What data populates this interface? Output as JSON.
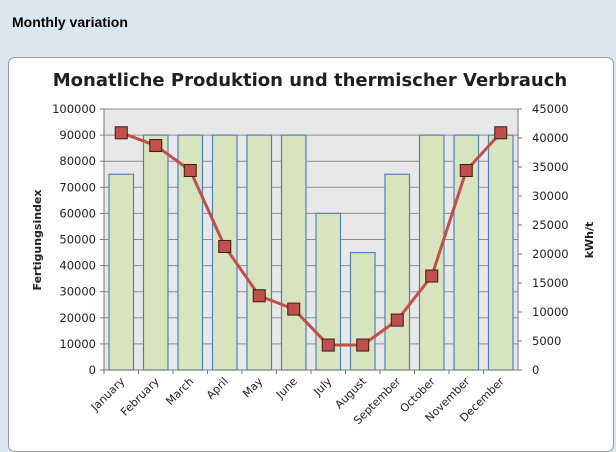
{
  "header": {
    "title": "Monthly variation"
  },
  "chart_data": {
    "type": "bar",
    "title": "Monatliche Produktion und thermischer Verbrauch",
    "xlabel": "",
    "ylabel": "Fertigungsindex",
    "y2label": "kWh/t",
    "categories": [
      "January",
      "February",
      "March",
      "April",
      "May",
      "June",
      "July",
      "August",
      "September",
      "October",
      "November",
      "December"
    ],
    "ylim": [
      0,
      100000
    ],
    "y2lim": [
      0,
      45000
    ],
    "yticks": [
      "0",
      "10000",
      "20000",
      "30000",
      "40000",
      "50000",
      "60000",
      "70000",
      "80000",
      "90000",
      "100000"
    ],
    "y2ticks": [
      "0",
      "5000",
      "10000",
      "15000",
      "20000",
      "25000",
      "30000",
      "35000",
      "40000",
      "45000"
    ],
    "grid": true,
    "legend": "none",
    "series": [
      {
        "type": "bar",
        "axis": "left",
        "values": [
          75000,
          90000,
          90000,
          90000,
          90000,
          90000,
          60000,
          45000,
          75000,
          90000,
          90000,
          90000
        ],
        "color": "#d7e4bd"
      },
      {
        "type": "line",
        "axis": "right",
        "marker": "square",
        "values": [
          40900,
          38700,
          34400,
          21300,
          12800,
          10500,
          4300,
          4300,
          8600,
          16200,
          34400,
          40900
        ],
        "color": "#c0504d"
      }
    ]
  }
}
